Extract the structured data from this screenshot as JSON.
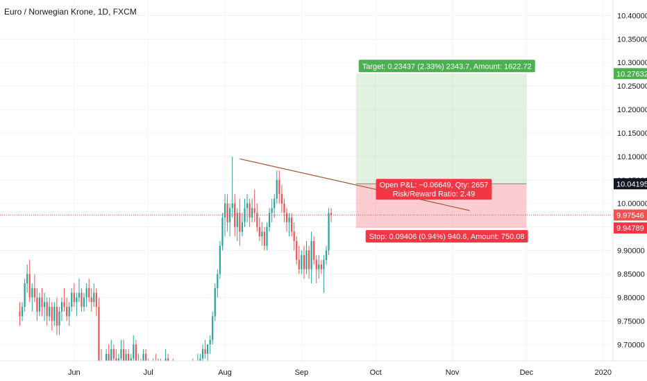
{
  "chart_data": {
    "type": "candlestick",
    "title": "Euro / Norwegian Krone, 1D, FXCM",
    "y_ticks": [
      "10.40000",
      "10.35000",
      "10.30000",
      "10.25000",
      "10.20000",
      "10.15000",
      "10.10000",
      "10.05000",
      "10.00000",
      "9.95000",
      "9.90000",
      "9.85000",
      "9.80000",
      "9.75000",
      "9.70000"
    ],
    "y_tick_values": [
      10.4,
      10.35,
      10.3,
      10.25,
      10.2,
      10.15,
      10.1,
      10.05,
      10.0,
      9.95,
      9.9,
      9.85,
      9.8,
      9.75,
      9.7
    ],
    "ylim": [
      9.665,
      10.433
    ],
    "x_ticks": [
      {
        "label": "Jun",
        "day": 22
      },
      {
        "label": "Jul",
        "day": 52
      },
      {
        "label": "Aug",
        "day": 83
      },
      {
        "label": "Sep",
        "day": 114
      },
      {
        "label": "Oct",
        "day": 144
      },
      {
        "label": "Nov",
        "day": 175
      },
      {
        "label": "Dec",
        "day": 205
      },
      {
        "label": "2020",
        "day": 236
      }
    ],
    "xlim": [
      -8,
      240
    ],
    "colors": {
      "up": "#26a69a",
      "down": "#ef5350",
      "trendline": "#a0522d",
      "target": "#4caf50",
      "stop": "#f23645",
      "current": "#ef5350",
      "entry": "#131722"
    },
    "trendline": [
      [
        89,
        10.095
      ],
      [
        182,
        9.985
      ]
    ],
    "position": {
      "start_day": 136,
      "end_day": 205,
      "entry": 10.04195,
      "target": 10.27632,
      "stop": 9.94789,
      "target_label": "Target: 0.23437 (2.33%) 2343.7, Amount: 1622.72",
      "stop_label": "Stop: 0.09406 (0.94%) 940.6, Amount: 750.08",
      "pnl_label": "Open P&L: −0.06649, Qty: 2657",
      "rr_label": "Risk/Reward Ratio: 2.49"
    },
    "price_labels": {
      "target": "10.27632",
      "entry": "10.04195",
      "current": "9.97546",
      "stop": "9.94789"
    },
    "current_price": 9.97546,
    "candles": [
      {
        "d": 0,
        "o": 9.77,
        "h": 9.79,
        "l": 9.74,
        "c": 9.76
      },
      {
        "d": 1,
        "o": 9.76,
        "h": 9.79,
        "l": 9.75,
        "c": 9.78
      },
      {
        "d": 2,
        "o": 9.78,
        "h": 9.84,
        "l": 9.77,
        "c": 9.83
      },
      {
        "d": 3,
        "o": 9.83,
        "h": 9.87,
        "l": 9.81,
        "c": 9.85
      },
      {
        "d": 4,
        "o": 9.85,
        "h": 9.88,
        "l": 9.79,
        "c": 9.8
      },
      {
        "d": 5,
        "o": 9.8,
        "h": 9.83,
        "l": 9.77,
        "c": 9.82
      },
      {
        "d": 6,
        "o": 9.82,
        "h": 9.85,
        "l": 9.79,
        "c": 9.8
      },
      {
        "d": 7,
        "o": 9.8,
        "h": 9.82,
        "l": 9.75,
        "c": 9.77
      },
      {
        "d": 8,
        "o": 9.77,
        "h": 9.81,
        "l": 9.76,
        "c": 9.8
      },
      {
        "d": 9,
        "o": 9.8,
        "h": 9.82,
        "l": 9.76,
        "c": 9.78
      },
      {
        "d": 10,
        "o": 9.78,
        "h": 9.81,
        "l": 9.75,
        "c": 9.79
      },
      {
        "d": 11,
        "o": 9.79,
        "h": 9.8,
        "l": 9.74,
        "c": 9.76
      },
      {
        "d": 12,
        "o": 9.76,
        "h": 9.8,
        "l": 9.75,
        "c": 9.78
      },
      {
        "d": 13,
        "o": 9.78,
        "h": 9.79,
        "l": 9.73,
        "c": 9.75
      },
      {
        "d": 14,
        "o": 9.75,
        "h": 9.79,
        "l": 9.74,
        "c": 9.78
      },
      {
        "d": 15,
        "o": 9.78,
        "h": 9.8,
        "l": 9.72,
        "c": 9.74
      },
      {
        "d": 16,
        "o": 9.74,
        "h": 9.78,
        "l": 9.72,
        "c": 9.77
      },
      {
        "d": 17,
        "o": 9.77,
        "h": 9.8,
        "l": 9.75,
        "c": 9.79
      },
      {
        "d": 18,
        "o": 9.79,
        "h": 9.82,
        "l": 9.77,
        "c": 9.78
      },
      {
        "d": 19,
        "o": 9.78,
        "h": 9.8,
        "l": 9.75,
        "c": 9.76
      },
      {
        "d": 20,
        "o": 9.76,
        "h": 9.79,
        "l": 9.74,
        "c": 9.78
      },
      {
        "d": 21,
        "o": 9.78,
        "h": 9.82,
        "l": 9.77,
        "c": 9.81
      },
      {
        "d": 22,
        "o": 9.81,
        "h": 9.83,
        "l": 9.78,
        "c": 9.79
      },
      {
        "d": 23,
        "o": 9.79,
        "h": 9.81,
        "l": 9.76,
        "c": 9.8
      },
      {
        "d": 24,
        "o": 9.8,
        "h": 9.84,
        "l": 9.79,
        "c": 9.81
      },
      {
        "d": 25,
        "o": 9.81,
        "h": 9.82,
        "l": 9.77,
        "c": 9.78
      },
      {
        "d": 26,
        "o": 9.78,
        "h": 9.81,
        "l": 9.77,
        "c": 9.8
      },
      {
        "d": 27,
        "o": 9.8,
        "h": 9.83,
        "l": 9.78,
        "c": 9.82
      },
      {
        "d": 28,
        "o": 9.82,
        "h": 9.84,
        "l": 9.79,
        "c": 9.8
      },
      {
        "d": 29,
        "o": 9.8,
        "h": 9.82,
        "l": 9.77,
        "c": 9.79
      },
      {
        "d": 30,
        "o": 9.79,
        "h": 9.83,
        "l": 9.78,
        "c": 9.81
      },
      {
        "d": 31,
        "o": 9.81,
        "h": 9.82,
        "l": 9.76,
        "c": 9.78
      },
      {
        "d": 32,
        "o": 9.78,
        "h": 9.8,
        "l": 9.64,
        "c": 9.66
      },
      {
        "d": 33,
        "o": 9.66,
        "h": 9.69,
        "l": 9.63,
        "c": 9.64
      },
      {
        "d": 34,
        "o": 9.64,
        "h": 9.66,
        "l": 9.62,
        "c": 9.63
      },
      {
        "d": 35,
        "o": 9.63,
        "h": 9.69,
        "l": 9.62,
        "c": 9.68
      },
      {
        "d": 36,
        "o": 9.68,
        "h": 9.7,
        "l": 9.64,
        "c": 9.65
      },
      {
        "d": 37,
        "o": 9.65,
        "h": 9.71,
        "l": 9.64,
        "c": 9.69
      },
      {
        "d": 38,
        "o": 9.69,
        "h": 9.7,
        "l": 9.66,
        "c": 9.67
      },
      {
        "d": 39,
        "o": 9.67,
        "h": 9.69,
        "l": 9.64,
        "c": 9.65
      },
      {
        "d": 40,
        "o": 9.65,
        "h": 9.68,
        "l": 9.63,
        "c": 9.67
      },
      {
        "d": 41,
        "o": 9.67,
        "h": 9.71,
        "l": 9.66,
        "c": 9.69
      },
      {
        "d": 42,
        "o": 9.69,
        "h": 9.71,
        "l": 9.65,
        "c": 9.66
      },
      {
        "d": 43,
        "o": 9.66,
        "h": 9.69,
        "l": 9.64,
        "c": 9.68
      },
      {
        "d": 44,
        "o": 9.68,
        "h": 9.69,
        "l": 9.63,
        "c": 9.64
      },
      {
        "d": 45,
        "o": 9.64,
        "h": 9.68,
        "l": 9.63,
        "c": 9.67
      },
      {
        "d": 46,
        "o": 9.67,
        "h": 9.72,
        "l": 9.66,
        "c": 9.7
      },
      {
        "d": 47,
        "o": 9.7,
        "h": 9.71,
        "l": 9.65,
        "c": 9.66
      },
      {
        "d": 48,
        "o": 9.66,
        "h": 9.68,
        "l": 9.63,
        "c": 9.64
      },
      {
        "d": 49,
        "o": 9.64,
        "h": 9.67,
        "l": 9.62,
        "c": 9.66
      },
      {
        "d": 50,
        "o": 9.66,
        "h": 9.69,
        "l": 9.64,
        "c": 9.68
      },
      {
        "d": 51,
        "o": 9.68,
        "h": 9.69,
        "l": 9.64,
        "c": 9.65
      },
      {
        "d": 52,
        "o": 9.65,
        "h": 9.67,
        "l": 9.62,
        "c": 9.64
      },
      {
        "d": 53,
        "o": 9.64,
        "h": 9.66,
        "l": 9.62,
        "c": 9.63
      },
      {
        "d": 54,
        "o": 9.63,
        "h": 9.67,
        "l": 9.62,
        "c": 9.66
      },
      {
        "d": 55,
        "o": 9.66,
        "h": 9.68,
        "l": 9.63,
        "c": 9.64
      },
      {
        "d": 56,
        "o": 9.64,
        "h": 9.67,
        "l": 9.62,
        "c": 9.65
      },
      {
        "d": 57,
        "o": 9.65,
        "h": 9.67,
        "l": 9.62,
        "c": 9.63
      },
      {
        "d": 58,
        "o": 9.63,
        "h": 9.66,
        "l": 9.61,
        "c": 9.65
      },
      {
        "d": 59,
        "o": 9.65,
        "h": 9.69,
        "l": 9.64,
        "c": 9.67
      },
      {
        "d": 60,
        "o": 9.67,
        "h": 9.68,
        "l": 9.63,
        "c": 9.64
      },
      {
        "d": 61,
        "o": 9.64,
        "h": 9.66,
        "l": 9.62,
        "c": 9.65
      },
      {
        "d": 62,
        "o": 9.65,
        "h": 9.67,
        "l": 9.63,
        "c": 9.64
      },
      {
        "d": 63,
        "o": 9.64,
        "h": 9.66,
        "l": 9.62,
        "c": 9.63
      },
      {
        "d": 64,
        "o": 9.63,
        "h": 9.65,
        "l": 9.61,
        "c": 9.62
      },
      {
        "d": 65,
        "o": 9.62,
        "h": 9.64,
        "l": 9.6,
        "c": 9.63
      },
      {
        "d": 66,
        "o": 9.63,
        "h": 9.65,
        "l": 9.61,
        "c": 9.62
      },
      {
        "d": 67,
        "o": 9.62,
        "h": 9.64,
        "l": 9.6,
        "c": 9.63
      },
      {
        "d": 68,
        "o": 9.63,
        "h": 9.65,
        "l": 9.61,
        "c": 9.64
      },
      {
        "d": 69,
        "o": 9.64,
        "h": 9.66,
        "l": 9.62,
        "c": 9.65
      },
      {
        "d": 70,
        "o": 9.65,
        "h": 9.67,
        "l": 9.63,
        "c": 9.64
      },
      {
        "d": 71,
        "o": 9.64,
        "h": 9.66,
        "l": 9.62,
        "c": 9.65
      },
      {
        "d": 72,
        "o": 9.65,
        "h": 9.68,
        "l": 9.63,
        "c": 9.66
      },
      {
        "d": 73,
        "o": 9.66,
        "h": 9.68,
        "l": 9.64,
        "c": 9.67
      },
      {
        "d": 74,
        "o": 9.67,
        "h": 9.7,
        "l": 9.65,
        "c": 9.69
      },
      {
        "d": 75,
        "o": 9.69,
        "h": 9.71,
        "l": 9.67,
        "c": 9.68
      },
      {
        "d": 76,
        "o": 9.68,
        "h": 9.7,
        "l": 9.66,
        "c": 9.7
      },
      {
        "d": 77,
        "o": 9.7,
        "h": 9.72,
        "l": 9.68,
        "c": 9.71
      },
      {
        "d": 78,
        "o": 9.71,
        "h": 9.77,
        "l": 9.7,
        "c": 9.76
      },
      {
        "d": 79,
        "o": 9.76,
        "h": 9.83,
        "l": 9.75,
        "c": 9.82
      },
      {
        "d": 80,
        "o": 9.82,
        "h": 9.86,
        "l": 9.8,
        "c": 9.85
      },
      {
        "d": 81,
        "o": 9.85,
        "h": 9.92,
        "l": 9.84,
        "c": 9.91
      },
      {
        "d": 82,
        "o": 9.91,
        "h": 9.98,
        "l": 9.9,
        "c": 9.97
      },
      {
        "d": 83,
        "o": 9.97,
        "h": 10.02,
        "l": 9.93,
        "c": 10.0
      },
      {
        "d": 84,
        "o": 10.0,
        "h": 10.02,
        "l": 9.94,
        "c": 9.96
      },
      {
        "d": 85,
        "o": 9.96,
        "h": 10.0,
        "l": 9.93,
        "c": 9.99
      },
      {
        "d": 86,
        "o": 9.99,
        "h": 10.1,
        "l": 9.97,
        "c": 10.0
      },
      {
        "d": 87,
        "o": 10.0,
        "h": 10.02,
        "l": 9.93,
        "c": 9.95
      },
      {
        "d": 88,
        "o": 9.95,
        "h": 9.99,
        "l": 9.92,
        "c": 9.98
      },
      {
        "d": 89,
        "o": 9.98,
        "h": 10.01,
        "l": 9.91,
        "c": 9.94
      },
      {
        "d": 90,
        "o": 9.94,
        "h": 9.98,
        "l": 9.93,
        "c": 9.96
      },
      {
        "d": 91,
        "o": 9.96,
        "h": 10.01,
        "l": 9.95,
        "c": 9.99
      },
      {
        "d": 92,
        "o": 9.99,
        "h": 10.02,
        "l": 9.96,
        "c": 10.0
      },
      {
        "d": 93,
        "o": 10.0,
        "h": 10.01,
        "l": 9.95,
        "c": 9.97
      },
      {
        "d": 94,
        "o": 9.97,
        "h": 10.01,
        "l": 9.96,
        "c": 9.99
      },
      {
        "d": 95,
        "o": 9.99,
        "h": 10.03,
        "l": 9.96,
        "c": 9.98
      },
      {
        "d": 96,
        "o": 9.98,
        "h": 10.0,
        "l": 9.94,
        "c": 9.95
      },
      {
        "d": 97,
        "o": 9.95,
        "h": 9.97,
        "l": 9.92,
        "c": 9.93
      },
      {
        "d": 98,
        "o": 9.93,
        "h": 9.96,
        "l": 9.91,
        "c": 9.94
      },
      {
        "d": 99,
        "o": 9.94,
        "h": 9.95,
        "l": 9.9,
        "c": 9.91
      },
      {
        "d": 100,
        "o": 9.91,
        "h": 9.96,
        "l": 9.9,
        "c": 9.95
      },
      {
        "d": 101,
        "o": 9.95,
        "h": 9.99,
        "l": 9.94,
        "c": 9.98
      },
      {
        "d": 102,
        "o": 9.98,
        "h": 10.01,
        "l": 9.96,
        "c": 9.99
      },
      {
        "d": 103,
        "o": 9.99,
        "h": 10.02,
        "l": 9.97,
        "c": 10.01
      },
      {
        "d": 104,
        "o": 10.01,
        "h": 10.07,
        "l": 10.0,
        "c": 10.05
      },
      {
        "d": 105,
        "o": 10.05,
        "h": 10.07,
        "l": 10.0,
        "c": 10.02
      },
      {
        "d": 106,
        "o": 10.02,
        "h": 10.04,
        "l": 9.98,
        "c": 10.0
      },
      {
        "d": 107,
        "o": 10.0,
        "h": 10.01,
        "l": 9.96,
        "c": 9.98
      },
      {
        "d": 108,
        "o": 9.98,
        "h": 9.99,
        "l": 9.94,
        "c": 9.96
      },
      {
        "d": 109,
        "o": 9.96,
        "h": 9.98,
        "l": 9.93,
        "c": 9.97
      },
      {
        "d": 110,
        "o": 9.97,
        "h": 9.98,
        "l": 9.93,
        "c": 9.94
      },
      {
        "d": 111,
        "o": 9.94,
        "h": 9.96,
        "l": 9.9,
        "c": 9.92
      },
      {
        "d": 112,
        "o": 9.92,
        "h": 9.93,
        "l": 9.87,
        "c": 9.88
      },
      {
        "d": 113,
        "o": 9.88,
        "h": 9.91,
        "l": 9.85,
        "c": 9.86
      },
      {
        "d": 114,
        "o": 9.86,
        "h": 9.9,
        "l": 9.85,
        "c": 9.89
      },
      {
        "d": 115,
        "o": 9.89,
        "h": 9.91,
        "l": 9.84,
        "c": 9.86
      },
      {
        "d": 116,
        "o": 9.86,
        "h": 9.92,
        "l": 9.85,
        "c": 9.9
      },
      {
        "d": 117,
        "o": 9.9,
        "h": 9.91,
        "l": 9.84,
        "c": 9.86
      },
      {
        "d": 118,
        "o": 9.86,
        "h": 9.94,
        "l": 9.83,
        "c": 9.92
      },
      {
        "d": 119,
        "o": 9.92,
        "h": 9.93,
        "l": 9.87,
        "c": 9.88
      },
      {
        "d": 120,
        "o": 9.88,
        "h": 9.89,
        "l": 9.83,
        "c": 9.86
      },
      {
        "d": 121,
        "o": 9.86,
        "h": 9.89,
        "l": 9.84,
        "c": 9.87
      },
      {
        "d": 122,
        "o": 9.87,
        "h": 9.88,
        "l": 9.85,
        "c": 9.86
      },
      {
        "d": 123,
        "o": 9.86,
        "h": 9.89,
        "l": 9.81,
        "c": 9.88
      },
      {
        "d": 124,
        "o": 9.88,
        "h": 9.91,
        "l": 9.87,
        "c": 9.9
      },
      {
        "d": 125,
        "o": 9.9,
        "h": 9.99,
        "l": 9.89,
        "c": 9.98
      },
      {
        "d": 126,
        "o": 9.98,
        "h": 9.99,
        "l": 9.96,
        "c": 9.975
      }
    ]
  }
}
